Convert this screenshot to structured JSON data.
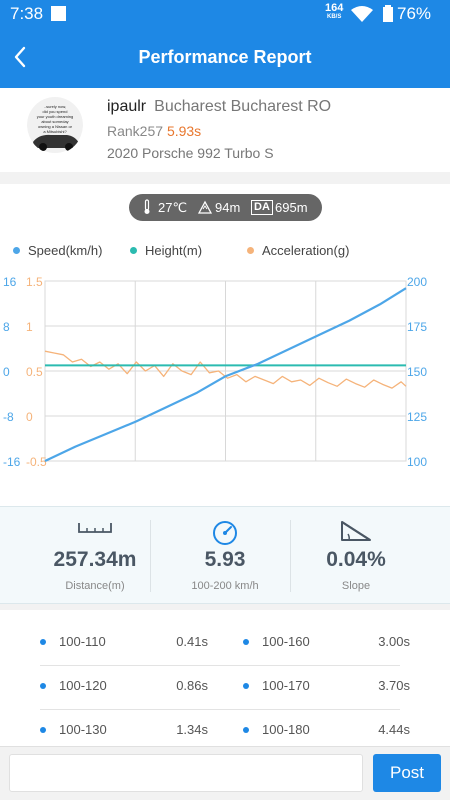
{
  "status_bar": {
    "time": "7:38",
    "net_speed": "164",
    "net_unit": "KB/S",
    "battery": "76%"
  },
  "header": {
    "title": "Performance Report"
  },
  "profile": {
    "username": "ipaulr",
    "location": "Bucharest Bucharest RO",
    "rank": "Rank257",
    "time": "5.93s",
    "vehicle": "2020 Porsche 992 Turbo S",
    "avatar_text": [
      "..surely now,",
      "did you spend",
      "your youth dreaming",
      "about someday",
      "owning a Nissan or",
      "a Mitsubishi?"
    ]
  },
  "conditions": {
    "temperature": "27℃",
    "altitude": "94m",
    "da_label": "DA",
    "density_altitude": "695m"
  },
  "legend": {
    "speed": "Speed(km/h)",
    "height": "Height(m)",
    "acceleration": "Acceleration(g)"
  },
  "colors": {
    "speed": "#4da6e8",
    "height": "#2bbbb0",
    "acceleration": "#f5b37a",
    "accent": "#1e88e5",
    "time_highlight": "#e8772e"
  },
  "chart_data": {
    "type": "line",
    "x_range": [
      0,
      5.93
    ],
    "left_axis_height": {
      "ticks": [
        "16",
        "8",
        "0",
        "-8",
        "-16"
      ],
      "range": [
        -16,
        16
      ]
    },
    "left_axis_accel": {
      "ticks": [
        "1.5",
        "1",
        "0.5",
        "0",
        "-0.5"
      ],
      "range": [
        -0.5,
        1.5
      ]
    },
    "right_axis_speed": {
      "ticks": [
        "200",
        "175",
        "150",
        "125",
        "100"
      ],
      "range": [
        100,
        200
      ]
    },
    "grid": true,
    "series": [
      {
        "name": "Speed(km/h)",
        "axis": "right",
        "x": [
          0,
          0.5,
          1.0,
          1.5,
          2.0,
          2.5,
          2.96,
          3.5,
          4.0,
          4.5,
          5.0,
          5.5,
          5.93
        ],
        "y": [
          100,
          108,
          115,
          122,
          130,
          138,
          147,
          154,
          162,
          170,
          178,
          187,
          196
        ]
      },
      {
        "name": "Height(m)",
        "axis": "left_height",
        "x": [
          0,
          5.93
        ],
        "y": [
          1,
          1
        ]
      },
      {
        "name": "Acceleration(g)",
        "axis": "left_accel",
        "x": [
          0,
          0.15,
          0.3,
          0.45,
          0.6,
          0.75,
          0.9,
          1.05,
          1.2,
          1.35,
          1.5,
          1.65,
          1.8,
          1.95,
          2.1,
          2.25,
          2.4,
          2.55,
          2.7,
          2.85,
          3.0,
          3.15,
          3.3,
          3.45,
          3.6,
          3.75,
          3.9,
          4.05,
          4.2,
          4.35,
          4.5,
          4.65,
          4.8,
          4.95,
          5.1,
          5.25,
          5.4,
          5.55,
          5.7,
          5.85,
          5.93
        ],
        "y": [
          0.72,
          0.7,
          0.68,
          0.6,
          0.63,
          0.55,
          0.6,
          0.52,
          0.58,
          0.47,
          0.6,
          0.5,
          0.56,
          0.44,
          0.58,
          0.5,
          0.46,
          0.6,
          0.48,
          0.5,
          0.42,
          0.46,
          0.38,
          0.44,
          0.4,
          0.36,
          0.44,
          0.38,
          0.4,
          0.34,
          0.42,
          0.37,
          0.33,
          0.41,
          0.36,
          0.32,
          0.4,
          0.35,
          0.31,
          0.38,
          0.33
        ]
      }
    ]
  },
  "stats": [
    {
      "value": "257.34m",
      "label": "Distance(m)",
      "icon": "ruler-icon"
    },
    {
      "value": "5.93",
      "label": "100-200 km/h",
      "icon": "speedometer-icon"
    },
    {
      "value": "0.04%",
      "label": "Slope",
      "icon": "slope-icon"
    }
  ],
  "splits": [
    {
      "range": "100-110",
      "time": "0.41s"
    },
    {
      "range": "100-160",
      "time": "3.00s"
    },
    {
      "range": "100-120",
      "time": "0.86s"
    },
    {
      "range": "100-170",
      "time": "3.70s"
    },
    {
      "range": "100-130",
      "time": "1.34s"
    },
    {
      "range": "100-180",
      "time": "4.44s"
    }
  ],
  "comment": {
    "placeholder": "",
    "post_label": "Post"
  }
}
